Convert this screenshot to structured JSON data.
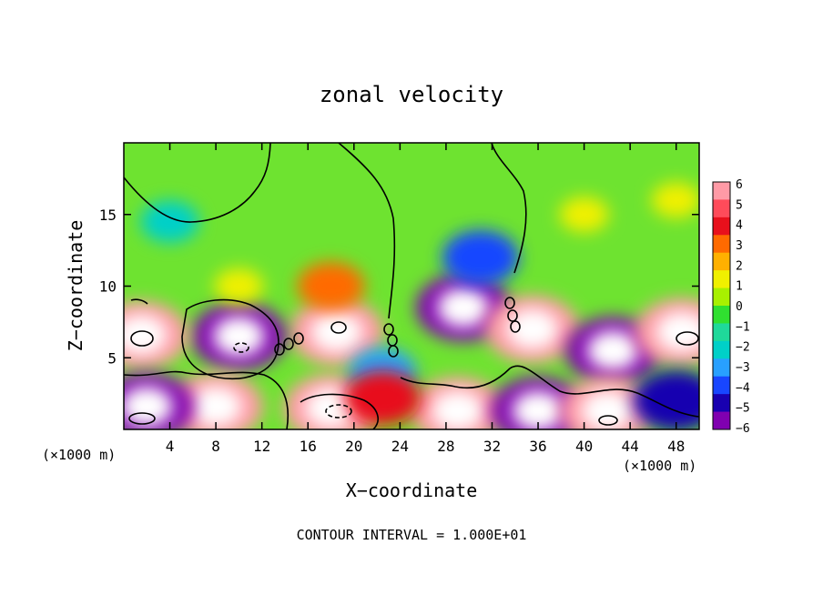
{
  "chart_data": {
    "type": "heatmap",
    "title": "zonal velocity",
    "xlabel": "X−coordinate",
    "ylabel": "Z−coordinate",
    "x_unit_left": "(×1000 m)",
    "x_unit_right": "(×1000 m)",
    "footer": "CONTOUR INTERVAL = 1.000E+01",
    "xlim": [
      0,
      50
    ],
    "ylim": [
      0,
      20
    ],
    "x_ticks": [
      4,
      8,
      12,
      16,
      20,
      24,
      28,
      32,
      36,
      40,
      44,
      48
    ],
    "y_ticks": [
      5,
      10,
      15
    ],
    "colorbar": {
      "range": [
        -6,
        6
      ],
      "labels": [
        6,
        5,
        4,
        3,
        2,
        1,
        0,
        -1,
        -2,
        -3,
        -4,
        -5,
        -6
      ],
      "colors": [
        "#ff9aa6",
        "#ff4b5a",
        "#e8101c",
        "#ff6a00",
        "#ffb000",
        "#f0f000",
        "#a8f000",
        "#30e030",
        "#1fd99a",
        "#00d0c8",
        "#28a0ff",
        "#1846ff",
        "#1800b0",
        "#8000b0"
      ]
    },
    "features": [
      {
        "x": 29.5,
        "z": 8.5,
        "value": -6
      },
      {
        "x": 18.5,
        "z": 6.8,
        "value": 6
      },
      {
        "x": 10,
        "z": 6.5,
        "value": -6
      },
      {
        "x": 1.5,
        "z": 6.6,
        "value": 6
      },
      {
        "x": 35.5,
        "z": 7.0,
        "value": 6
      },
      {
        "x": 42.5,
        "z": 5.5,
        "value": -6
      },
      {
        "x": 48.5,
        "z": 6.8,
        "value": 6
      },
      {
        "x": 4,
        "z": 14.5,
        "value": -2
      },
      {
        "x": 18,
        "z": 10,
        "value": 3
      },
      {
        "x": 31,
        "z": 12,
        "value": -4
      },
      {
        "x": 18,
        "z": 1.5,
        "value": 6
      },
      {
        "x": 29,
        "z": 1.3,
        "value": 6
      },
      {
        "x": 8,
        "z": 1.6,
        "value": 6
      },
      {
        "x": 2,
        "z": 1.6,
        "value": -6
      },
      {
        "x": 36,
        "z": 1.3,
        "value": -6
      },
      {
        "x": 42,
        "z": 1.3,
        "value": 6
      },
      {
        "x": 48,
        "z": 2,
        "value": -5
      },
      {
        "x": 22.5,
        "z": 4,
        "value": -3
      },
      {
        "x": 22.5,
        "z": 2.2,
        "value": 4
      },
      {
        "x": 40,
        "z": 15,
        "value": 1
      },
      {
        "x": 10,
        "z": 10,
        "value": 1
      },
      {
        "x": 48,
        "z": 16,
        "value": 1
      }
    ]
  }
}
